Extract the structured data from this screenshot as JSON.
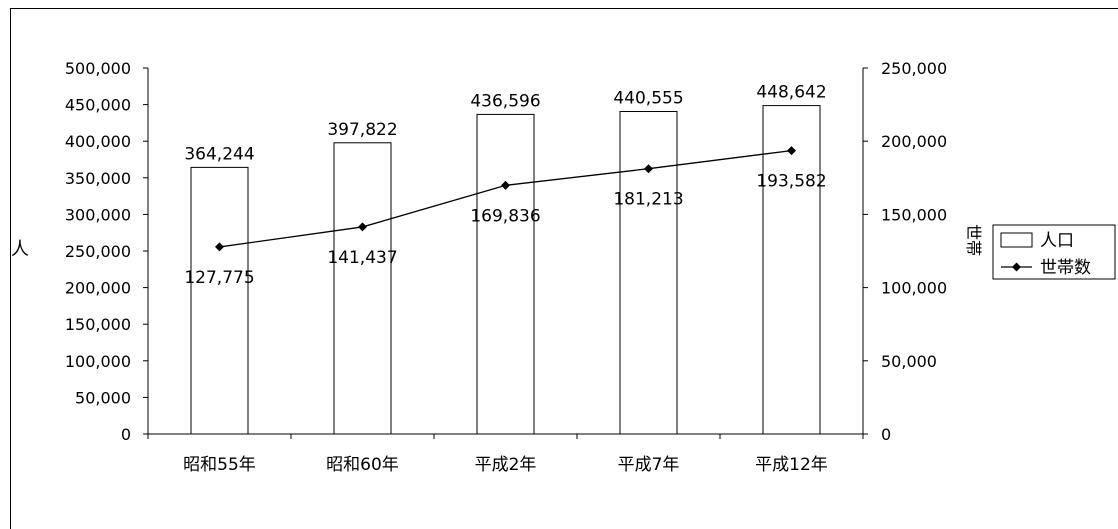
{
  "chart_data": {
    "type": "bar",
    "categories": [
      "昭和55年",
      "昭和60年",
      "平成2年",
      "平成7年",
      "平成12年"
    ],
    "series": [
      {
        "name": "人口",
        "type": "bar",
        "axis": "left",
        "values": [
          364244,
          397822,
          436596,
          440555,
          448642
        ],
        "labels": [
          "364,244",
          "397,822",
          "436,596",
          "440,555",
          "448,642"
        ]
      },
      {
        "name": "世帯数",
        "type": "line",
        "axis": "right",
        "values": [
          127775,
          141437,
          169836,
          181213,
          193582
        ],
        "labels": [
          "127,775",
          "141,437",
          "169,836",
          "181,213",
          "193,582"
        ]
      }
    ],
    "ylabel": "人",
    "y2label": "世帯",
    "ylim": [
      0,
      500000
    ],
    "y2lim": [
      0,
      250000
    ],
    "yticks": [
      "0",
      "50,000",
      "100,000",
      "150,000",
      "200,000",
      "250,000",
      "300,000",
      "350,000",
      "400,000",
      "450,000",
      "500,000"
    ],
    "y2ticks": [
      "0",
      "50,000",
      "100,000",
      "150,000",
      "200,000",
      "250,000"
    ],
    "grid": false,
    "legend_position": "right",
    "colors": {
      "bar_fill": "#ffffff",
      "bar_stroke": "#000000",
      "line": "#000000",
      "marker": "#000000"
    }
  }
}
